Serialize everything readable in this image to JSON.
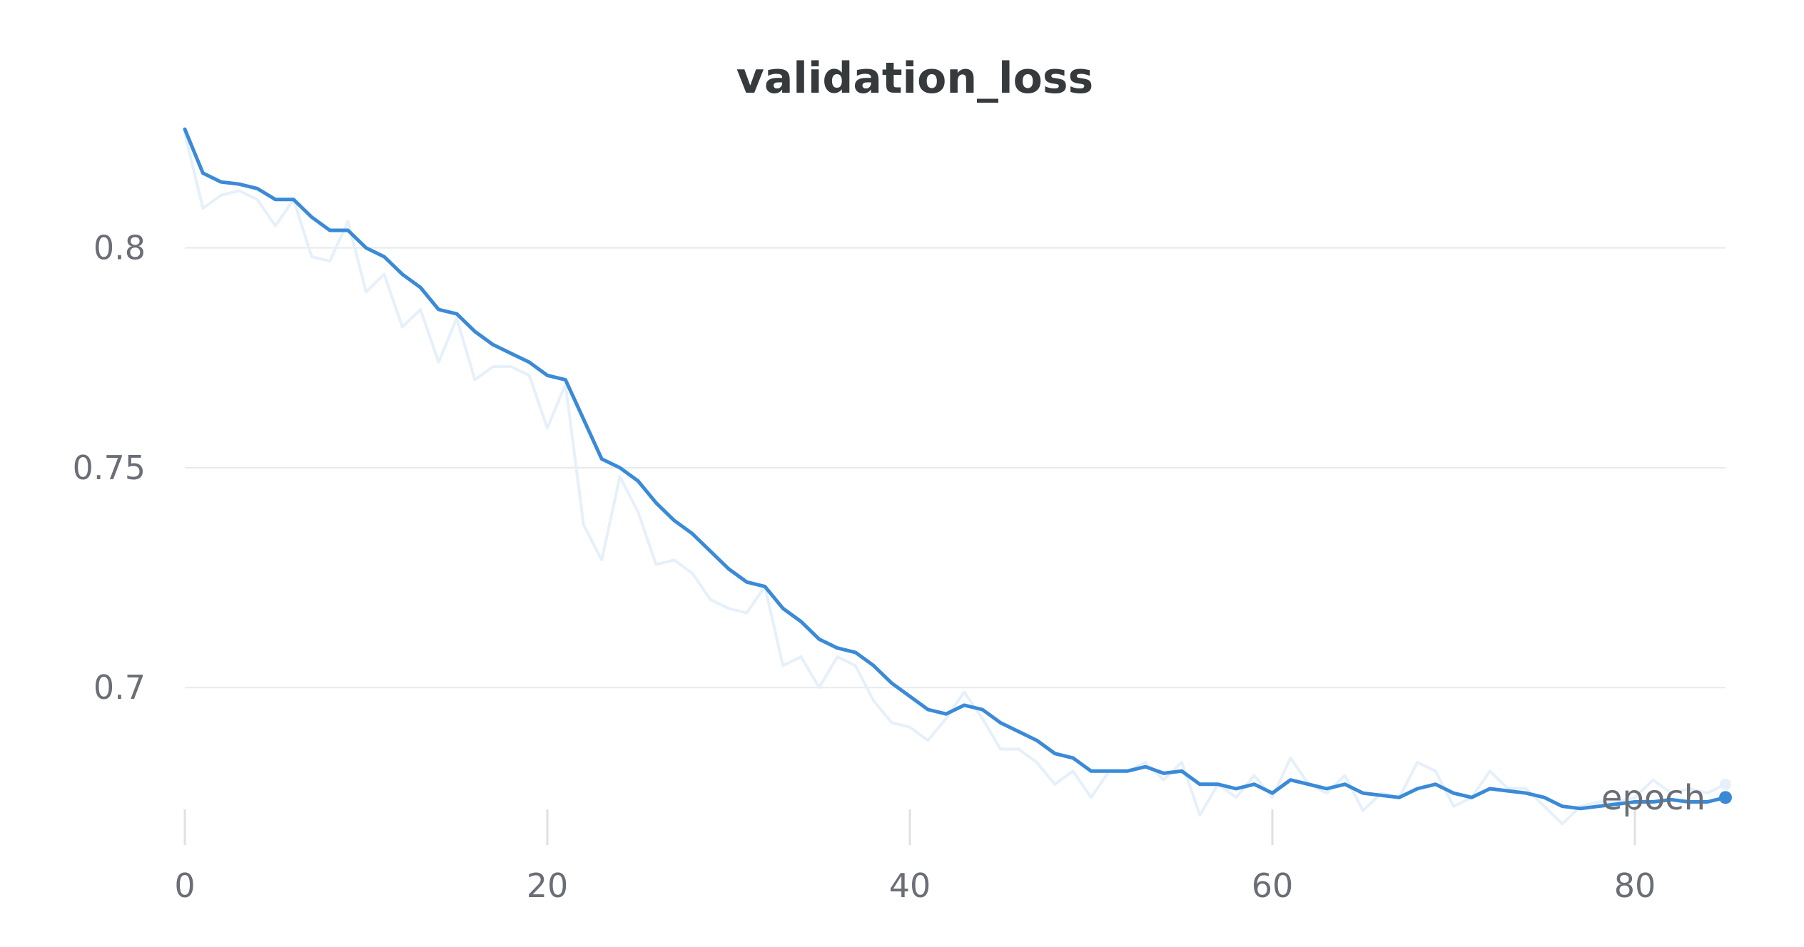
{
  "chart_data": {
    "type": "line",
    "title": "validation_loss",
    "xlabel": "epoch",
    "ylabel": "",
    "xlim": [
      0,
      85
    ],
    "ylim": [
      0.665,
      0.828
    ],
    "x_ticks": [
      0,
      20,
      40,
      60,
      80
    ],
    "y_ticks": [
      0.7,
      0.75,
      0.8
    ],
    "y_tick_labels": [
      "0.7",
      "0.75",
      "0.8"
    ],
    "grid": true,
    "legend": "none",
    "series": [
      {
        "style": "raw",
        "color": "#e6f0fa",
        "x": [
          0,
          1,
          2,
          3,
          4,
          5,
          6,
          7,
          8,
          9,
          10,
          11,
          12,
          13,
          14,
          15,
          16,
          17,
          18,
          19,
          20,
          21,
          22,
          23,
          24,
          25,
          26,
          27,
          28,
          29,
          30,
          31,
          32,
          33,
          34,
          35,
          36,
          37,
          38,
          39,
          40,
          41,
          42,
          43,
          44,
          45,
          46,
          47,
          48,
          49,
          50,
          51,
          52,
          53,
          54,
          55,
          56,
          57,
          58,
          59,
          60,
          61,
          62,
          63,
          64,
          65,
          66,
          67,
          68,
          69,
          70,
          71,
          72,
          73,
          74,
          75,
          76,
          77,
          78,
          79,
          80,
          81,
          82,
          83,
          84,
          85
        ],
        "y": [
          0.826,
          0.809,
          0.812,
          0.813,
          0.811,
          0.805,
          0.811,
          0.798,
          0.797,
          0.806,
          0.79,
          0.794,
          0.782,
          0.786,
          0.774,
          0.784,
          0.77,
          0.773,
          0.773,
          0.771,
          0.759,
          0.769,
          0.737,
          0.729,
          0.748,
          0.74,
          0.728,
          0.729,
          0.726,
          0.72,
          0.718,
          0.717,
          0.723,
          0.705,
          0.707,
          0.7,
          0.707,
          0.705,
          0.697,
          0.692,
          0.691,
          0.688,
          0.693,
          0.699,
          0.693,
          0.686,
          0.686,
          0.683,
          0.678,
          0.681,
          0.675,
          0.681,
          0.681,
          0.683,
          0.679,
          0.683,
          0.671,
          0.678,
          0.675,
          0.68,
          0.675,
          0.684,
          0.678,
          0.676,
          0.68,
          0.672,
          0.676,
          0.675,
          0.683,
          0.681,
          0.673,
          0.675,
          0.681,
          0.677,
          0.677,
          0.673,
          0.669,
          0.673,
          0.674,
          0.674,
          0.675,
          0.679,
          0.676,
          0.677,
          0.676,
          0.678
        ]
      },
      {
        "style": "smoothed",
        "color": "#3a8ad7",
        "x": [
          0,
          1,
          2,
          3,
          4,
          5,
          6,
          7,
          8,
          9,
          10,
          11,
          12,
          13,
          14,
          15,
          16,
          17,
          18,
          19,
          20,
          21,
          22,
          23,
          24,
          25,
          26,
          27,
          28,
          29,
          30,
          31,
          32,
          33,
          34,
          35,
          36,
          37,
          38,
          39,
          40,
          41,
          42,
          43,
          44,
          45,
          46,
          47,
          48,
          49,
          50,
          51,
          52,
          53,
          54,
          55,
          56,
          57,
          58,
          59,
          60,
          61,
          62,
          63,
          64,
          65,
          66,
          67,
          68,
          69,
          70,
          71,
          72,
          73,
          74,
          75,
          76,
          77,
          78,
          79,
          80,
          81,
          82,
          83,
          84,
          85
        ],
        "y": [
          0.827,
          0.817,
          0.815,
          0.8145,
          0.8135,
          0.811,
          0.811,
          0.807,
          0.804,
          0.804,
          0.8,
          0.798,
          0.794,
          0.791,
          0.786,
          0.785,
          0.781,
          0.778,
          0.776,
          0.774,
          0.771,
          0.77,
          0.761,
          0.752,
          0.75,
          0.747,
          0.742,
          0.738,
          0.735,
          0.731,
          0.727,
          0.724,
          0.723,
          0.718,
          0.715,
          0.711,
          0.709,
          0.708,
          0.705,
          0.701,
          0.698,
          0.695,
          0.694,
          0.696,
          0.695,
          0.692,
          0.69,
          0.688,
          0.685,
          0.684,
          0.681,
          0.681,
          0.681,
          0.682,
          0.6805,
          0.681,
          0.678,
          0.678,
          0.677,
          0.678,
          0.676,
          0.679,
          0.678,
          0.677,
          0.678,
          0.676,
          0.6755,
          0.675,
          0.677,
          0.678,
          0.676,
          0.675,
          0.677,
          0.6765,
          0.676,
          0.675,
          0.673,
          0.6725,
          0.673,
          0.6735,
          0.674,
          0.674,
          0.6745,
          0.674,
          0.674,
          0.675
        ]
      }
    ]
  }
}
